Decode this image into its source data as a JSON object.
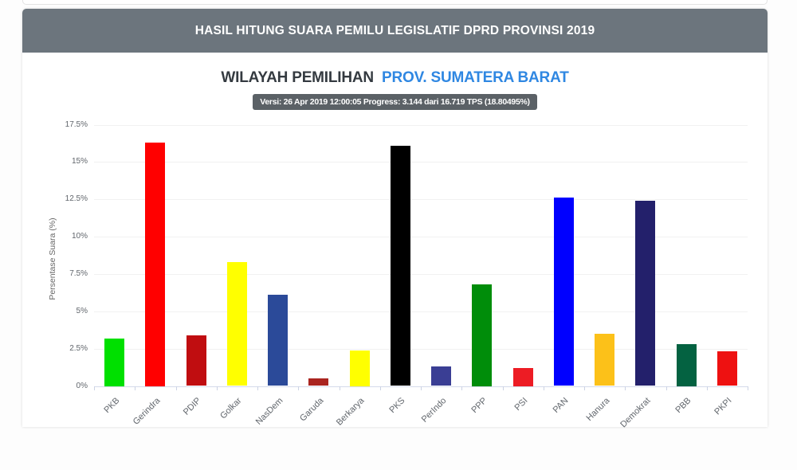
{
  "page": {
    "header": {
      "title": "HASIL HITUNG SUARA PEMILU LEGISLATIF DPRD PROVINSI 2019",
      "bg_color": "#6c757d"
    },
    "subtitle": {
      "prefix": "WILAYAH PEMILIHAN",
      "region": "PROV. SUMATERA BARAT",
      "region_color": "#2f87e2"
    },
    "version_badge": {
      "text": "Versi: 26 Apr 2019 12:00:05 Progress: 3.144 dari 16.719 TPS (18.80495%)",
      "bg_color": "#5b6166"
    }
  },
  "chart_data": {
    "type": "bar",
    "title": "",
    "xlabel": "",
    "ylabel": "Persentase Suara (%)",
    "ylim": [
      0,
      17.5
    ],
    "yticks": [
      0,
      2.5,
      5,
      7.5,
      10,
      12.5,
      15,
      17.5
    ],
    "ytick_labels": [
      "0%",
      "2.5%",
      "5%",
      "7.5%",
      "10%",
      "12.5%",
      "15%",
      "17.5%"
    ],
    "grid": true,
    "legend_position": "none",
    "categories": [
      "PKB",
      "Gerindra",
      "PDIP",
      "Golkar",
      "NasDem",
      "Garuda",
      "Berkarya",
      "PKS",
      "PerIndo",
      "PPP",
      "PSI",
      "PAN",
      "Hanura",
      "Demokrat",
      "PBB",
      "PKPI"
    ],
    "values": [
      3.2,
      16.3,
      3.4,
      8.3,
      6.1,
      0.5,
      2.4,
      16.1,
      1.3,
      6.8,
      1.2,
      12.6,
      3.5,
      12.4,
      2.8,
      2.3
    ],
    "colors": [
      "#00e000",
      "#ff0000",
      "#c00d10",
      "#ffff00",
      "#2b4a99",
      "#aa2520",
      "#ffff00",
      "#000000",
      "#3a3e94",
      "#008d0a",
      "#ed1c24",
      "#0000ff",
      "#fcc119",
      "#23206b",
      "#046241",
      "#ee1111"
    ]
  }
}
